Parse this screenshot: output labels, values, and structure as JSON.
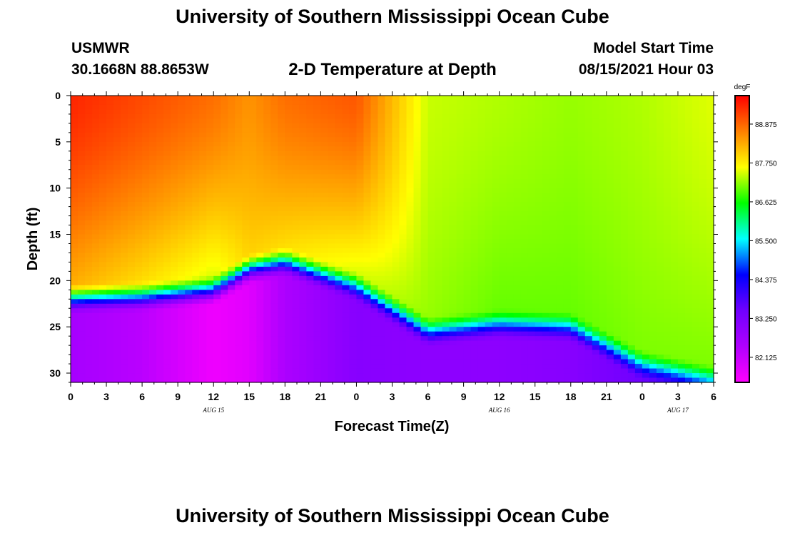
{
  "header": {
    "title": "University of Southern Mississippi Ocean Cube",
    "station_name": "USMWR",
    "station_coords": "30.1668N  88.8653W",
    "subtitle": "2-D Temperature at Depth",
    "model_start_label": "Model Start Time",
    "model_start_value": "08/15/2021 Hour 03"
  },
  "footer": {
    "title": "University of Southern Mississippi Ocean Cube"
  },
  "chart_data": {
    "type": "heatmap",
    "title": "2-D Temperature at Depth",
    "xlabel": "Forecast Time(Z)",
    "ylabel": "Depth (ft)",
    "x_range_hours": [
      0,
      54
    ],
    "x_tick_hours": [
      0,
      3,
      6,
      9,
      12,
      15,
      18,
      21,
      24,
      27,
      30,
      33,
      36,
      39,
      42,
      45,
      48,
      51,
      54
    ],
    "x_tick_labels": [
      "0",
      "3",
      "6",
      "9",
      "12",
      "15",
      "18",
      "21",
      "0",
      "3",
      "6",
      "9",
      "12",
      "15",
      "18",
      "21",
      "0",
      "3",
      "6"
    ],
    "date_labels": [
      {
        "text": "AUG 15",
        "hour": 12
      },
      {
        "text": "AUG 16",
        "hour": 36
      },
      {
        "text": "AUG 17",
        "hour": 51
      }
    ],
    "y_range_ft": [
      0,
      31
    ],
    "y_ticks": [
      0,
      5,
      10,
      15,
      20,
      25,
      30
    ],
    "colorbar": {
      "units": "degF",
      "min": 81.4,
      "max": 89.7,
      "ticks": [
        "88.875",
        "87.750",
        "86.625",
        "85.500",
        "84.375",
        "83.250",
        "82.125"
      ],
      "tick_values": [
        88.875,
        87.75,
        86.625,
        85.5,
        84.375,
        83.25,
        82.125
      ],
      "colors": [
        "#ff00ff",
        "#b000ff",
        "#7000ff",
        "#0000ff",
        "#00ffff",
        "#00ff00",
        "#ffff00",
        "#ff8000",
        "#ff0000"
      ]
    },
    "grid_x_hours": [
      0,
      6,
      12,
      15,
      18,
      24,
      30,
      36,
      42,
      48,
      54
    ],
    "thermocline_depth_ft": [
      22.2,
      22.0,
      21.3,
      19.0,
      18.2,
      20.9,
      25.8,
      25.0,
      25.3,
      29.4,
      31.0
    ],
    "surface_temp_degF": [
      89.4,
      89.1,
      88.8,
      88.5,
      88.8,
      89.0,
      87.4,
      87.3,
      87.2,
      87.3,
      87.5
    ],
    "mixed_layer_temp_degF": [
      88.3,
      87.9,
      87.5,
      88.0,
      87.9,
      87.5,
      87.2,
      87.0,
      87.0,
      87.1,
      87.1
    ],
    "deep_temp_degF": [
      82.6,
      82.3,
      81.6,
      81.8,
      82.5,
      83.1,
      83.0,
      83.0,
      83.1,
      83.5,
      84.0
    ]
  }
}
